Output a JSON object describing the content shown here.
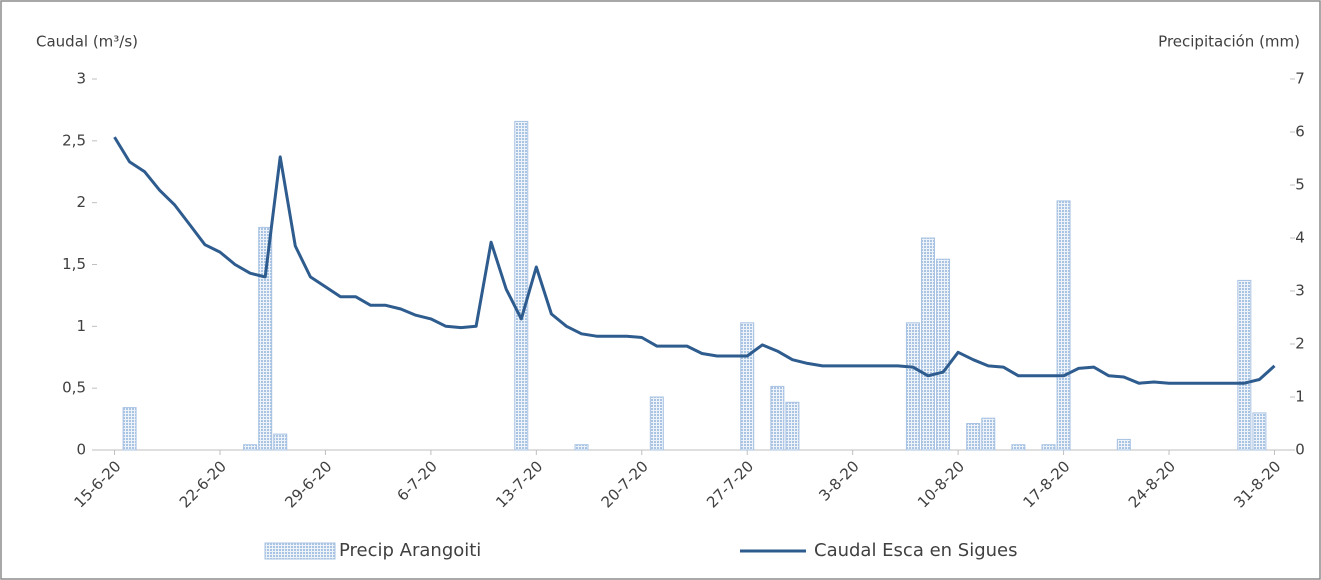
{
  "chart_data": {
    "type": "combo",
    "y_label": "Caudal (m³/s)",
    "y2_label": "Precipitación (mm)",
    "categories": [
      "15-6-20",
      null,
      null,
      null,
      null,
      null,
      null,
      "22-6-20",
      null,
      null,
      null,
      null,
      null,
      null,
      "29-6-20",
      null,
      null,
      null,
      null,
      null,
      null,
      "6-7-20",
      null,
      null,
      null,
      null,
      null,
      null,
      "13-7-20",
      null,
      null,
      null,
      null,
      null,
      null,
      "20-7-20",
      null,
      null,
      null,
      null,
      null,
      null,
      "27-7-20",
      null,
      null,
      null,
      null,
      null,
      null,
      "3-8-20",
      null,
      null,
      null,
      null,
      null,
      null,
      "10-8-20",
      null,
      null,
      null,
      null,
      null,
      null,
      "17-8-20",
      null,
      null,
      null,
      null,
      null,
      null,
      "24-8-20",
      null,
      null,
      null,
      null,
      null,
      null,
      "31-8-20"
    ],
    "series": [
      {
        "name": "Precip Arangoiti",
        "type": "bar",
        "axis": "y2",
        "color": "#a9c3e3",
        "values": [
          0,
          0.8,
          0,
          0,
          0,
          0,
          0,
          0,
          0,
          0.1,
          4.2,
          0.3,
          0,
          0,
          0,
          0,
          0,
          0,
          0,
          0,
          0,
          0,
          0,
          0,
          0,
          0,
          0,
          6.2,
          0,
          0,
          0,
          0.1,
          0,
          0,
          0,
          0,
          1.0,
          0,
          0,
          0,
          0,
          0,
          2.4,
          0,
          1.2,
          0.9,
          0,
          0,
          0,
          0,
          0,
          0,
          0,
          2.4,
          4.0,
          3.6,
          0,
          0.5,
          0.6,
          0,
          0.1,
          0,
          0.1,
          4.7,
          0,
          0,
          0,
          0.2,
          0,
          0,
          0,
          0,
          0,
          0,
          0,
          3.2,
          0.7,
          0
        ]
      },
      {
        "name": "Caudal Esca en Sigues",
        "type": "line",
        "color": "#2e5c8e",
        "values": [
          2.53,
          2.33,
          2.25,
          2.1,
          1.98,
          1.82,
          1.66,
          1.6,
          1.5,
          1.43,
          1.4,
          2.37,
          1.65,
          1.4,
          1.32,
          1.24,
          1.24,
          1.17,
          1.17,
          1.14,
          1.09,
          1.06,
          1.0,
          0.99,
          1.0,
          1.68,
          1.3,
          1.06,
          1.48,
          1.1,
          1.0,
          0.94,
          0.92,
          0.92,
          0.92,
          0.91,
          0.84,
          0.84,
          0.84,
          0.78,
          0.76,
          0.76,
          0.76,
          0.85,
          0.8,
          0.73,
          0.7,
          0.68,
          0.68,
          0.68,
          0.68,
          0.68,
          0.68,
          0.67,
          0.6,
          0.63,
          0.79,
          0.73,
          0.68,
          0.67,
          0.6,
          0.6,
          0.6,
          0.6,
          0.66,
          0.67,
          0.6,
          0.59,
          0.54,
          0.55,
          0.54,
          0.54,
          0.54,
          0.54,
          0.54,
          0.54,
          0.57,
          0.68
        ]
      }
    ],
    "ylim": [
      0,
      3
    ],
    "yticks": [
      0,
      {
        "value": 0.5,
        "label": "0,5"
      },
      1,
      {
        "value": 1.5,
        "label": "1,5"
      },
      2,
      {
        "value": 2.5,
        "label": "2,5"
      },
      3
    ],
    "y2lim": [
      0,
      7
    ],
    "y2ticks": [
      0,
      1,
      2,
      3,
      4,
      5,
      6,
      7
    ],
    "legend": "bottom"
  }
}
